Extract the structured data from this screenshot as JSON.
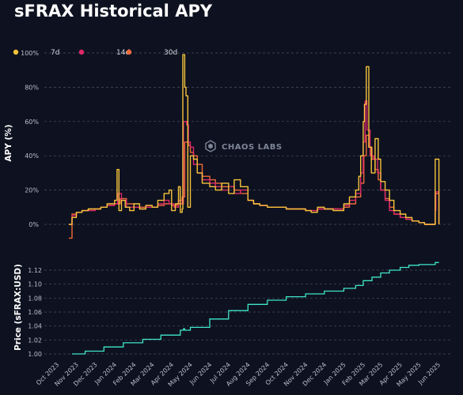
{
  "title": "sFRAX Historical APY",
  "colors": {
    "background": "#0e1220",
    "apy_7d": "#f5c33b",
    "apy_14d": "#e0286a",
    "apy_30d": "#ef6a3a",
    "price": "#3fe6c8"
  },
  "watermark": "CHAOS LABS",
  "watermark_icon": "chaos-labs-logo-icon",
  "chart_data": [
    {
      "type": "line",
      "title": "sFRAX Historical APY",
      "ylabel": "APY (%)",
      "xlabel": "",
      "ylim": [
        0,
        100
      ],
      "y_ticks": [
        "0%",
        "20%",
        "40%",
        "60%",
        "80%",
        "100%"
      ],
      "y_tick_values": [
        0,
        20,
        40,
        60,
        80,
        100
      ],
      "grid": true,
      "legend_position": "top-left",
      "legend": [
        "7d",
        "14d",
        "30d"
      ],
      "series": [
        {
          "name": "7d",
          "color": "#f5c33b",
          "x": [
            "2023-10-20",
            "2023-10-25",
            "2023-11-01",
            "2023-11-10",
            "2023-11-20",
            "2023-12-01",
            "2023-12-10",
            "2023-12-20",
            "2024-01-01",
            "2024-01-05",
            "2024-01-08",
            "2024-01-12",
            "2024-01-18",
            "2024-01-25",
            "2024-02-01",
            "2024-02-10",
            "2024-02-20",
            "2024-03-01",
            "2024-03-10",
            "2024-03-20",
            "2024-03-28",
            "2024-04-01",
            "2024-04-07",
            "2024-04-12",
            "2024-04-15",
            "2024-04-18",
            "2024-04-19",
            "2024-04-22",
            "2024-04-24",
            "2024-04-27",
            "2024-05-01",
            "2024-05-06",
            "2024-05-12",
            "2024-05-20",
            "2024-06-01",
            "2024-06-10",
            "2024-06-20",
            "2024-07-01",
            "2024-07-10",
            "2024-07-20",
            "2024-08-01",
            "2024-08-10",
            "2024-08-20",
            "2024-09-01",
            "2024-09-15",
            "2024-10-01",
            "2024-10-15",
            "2024-11-01",
            "2024-11-10",
            "2024-11-20",
            "2024-12-01",
            "2024-12-15",
            "2025-01-01",
            "2025-01-10",
            "2025-01-20",
            "2025-01-25",
            "2025-01-28",
            "2025-02-01",
            "2025-02-03",
            "2025-02-06",
            "2025-02-10",
            "2025-02-14",
            "2025-02-20",
            "2025-02-25",
            "2025-03-01",
            "2025-03-08",
            "2025-03-15",
            "2025-03-22",
            "2025-04-01",
            "2025-04-10",
            "2025-04-20",
            "2025-05-01",
            "2025-05-10",
            "2025-05-20",
            "2025-05-27",
            "2025-05-28",
            "2025-06-02"
          ],
          "values": [
            0,
            4,
            7,
            8,
            9,
            9,
            10,
            12,
            14,
            32,
            8,
            14,
            10,
            8,
            12,
            9,
            11,
            10,
            14,
            18,
            20,
            8,
            12,
            22,
            7,
            9,
            99,
            80,
            75,
            10,
            40,
            38,
            30,
            24,
            22,
            20,
            24,
            18,
            26,
            22,
            14,
            12,
            11,
            10,
            10,
            9,
            9,
            8,
            7,
            10,
            9,
            8,
            12,
            16,
            20,
            28,
            40,
            60,
            70,
            92,
            45,
            30,
            50,
            38,
            25,
            20,
            14,
            8,
            6,
            4,
            2,
            1,
            0,
            0,
            38,
            38,
            0
          ]
        },
        {
          "name": "14d",
          "color": "#e0286a",
          "x": [
            "2023-10-20",
            "2023-10-25",
            "2023-11-01",
            "2023-11-10",
            "2023-11-20",
            "2023-12-01",
            "2023-12-10",
            "2023-12-20",
            "2024-01-01",
            "2024-01-06",
            "2024-01-12",
            "2024-01-20",
            "2024-02-01",
            "2024-02-10",
            "2024-02-20",
            "2024-03-01",
            "2024-03-10",
            "2024-03-20",
            "2024-03-28",
            "2024-04-05",
            "2024-04-12",
            "2024-04-18",
            "2024-04-20",
            "2024-04-25",
            "2024-04-28",
            "2024-05-01",
            "2024-05-06",
            "2024-05-12",
            "2024-05-20",
            "2024-06-01",
            "2024-06-10",
            "2024-06-20",
            "2024-07-01",
            "2024-07-10",
            "2024-07-20",
            "2024-08-01",
            "2024-08-10",
            "2024-08-20",
            "2024-09-01",
            "2024-09-15",
            "2024-10-01",
            "2024-10-15",
            "2024-11-01",
            "2024-11-10",
            "2024-11-20",
            "2024-12-01",
            "2024-12-15",
            "2025-01-01",
            "2025-01-10",
            "2025-01-20",
            "2025-01-28",
            "2025-02-01",
            "2025-02-04",
            "2025-02-07",
            "2025-02-12",
            "2025-02-18",
            "2025-02-24",
            "2025-03-01",
            "2025-03-08",
            "2025-03-15",
            "2025-03-22",
            "2025-04-01",
            "2025-04-10",
            "2025-04-20",
            "2025-05-01",
            "2025-05-10",
            "2025-05-20",
            "2025-05-27",
            "2025-05-28",
            "2025-06-02"
          ],
          "values": [
            0,
            5,
            7,
            8,
            8,
            9,
            10,
            11,
            12,
            18,
            14,
            10,
            10,
            9,
            10,
            10,
            12,
            14,
            12,
            10,
            14,
            12,
            60,
            58,
            48,
            45,
            35,
            30,
            26,
            24,
            22,
            20,
            22,
            18,
            20,
            14,
            12,
            11,
            10,
            10,
            9,
            9,
            8,
            8,
            9,
            9,
            9,
            11,
            14,
            18,
            30,
            48,
            72,
            55,
            40,
            38,
            30,
            20,
            14,
            8,
            6,
            4,
            3,
            2,
            1,
            0,
            0,
            8,
            19,
            0
          ]
        },
        {
          "name": "30d",
          "color": "#ef6a3a",
          "x": [
            "2023-10-20",
            "2023-10-25",
            "2023-11-01",
            "2023-11-10",
            "2023-11-20",
            "2023-12-01",
            "2023-12-10",
            "2023-12-20",
            "2024-01-01",
            "2024-01-10",
            "2024-01-20",
            "2024-02-01",
            "2024-02-10",
            "2024-02-20",
            "2024-03-01",
            "2024-03-10",
            "2024-03-20",
            "2024-04-01",
            "2024-04-10",
            "2024-04-18",
            "2024-04-22",
            "2024-04-28",
            "2024-05-01",
            "2024-05-06",
            "2024-05-12",
            "2024-05-20",
            "2024-06-01",
            "2024-06-10",
            "2024-06-20",
            "2024-07-01",
            "2024-07-10",
            "2024-07-20",
            "2024-08-01",
            "2024-08-10",
            "2024-08-20",
            "2024-09-01",
            "2024-09-15",
            "2024-10-01",
            "2024-10-15",
            "2024-11-01",
            "2024-11-10",
            "2024-11-20",
            "2024-12-01",
            "2024-12-15",
            "2025-01-01",
            "2025-01-10",
            "2025-01-20",
            "2025-01-28",
            "2025-02-02",
            "2025-02-06",
            "2025-02-10",
            "2025-02-15",
            "2025-02-20",
            "2025-02-25",
            "2025-03-01",
            "2025-03-08",
            "2025-03-15",
            "2025-03-22",
            "2025-04-01",
            "2025-04-10",
            "2025-04-20",
            "2025-05-01",
            "2025-05-10",
            "2025-05-20",
            "2025-05-27",
            "2025-06-02"
          ],
          "values": [
            -8,
            6,
            7,
            8,
            9,
            9,
            10,
            11,
            12,
            15,
            12,
            10,
            10,
            11,
            10,
            11,
            12,
            11,
            12,
            16,
            48,
            46,
            42,
            40,
            35,
            28,
            26,
            24,
            22,
            22,
            20,
            18,
            14,
            12,
            11,
            10,
            10,
            9,
            9,
            8,
            8,
            9,
            9,
            9,
            10,
            12,
            16,
            24,
            40,
            52,
            45,
            38,
            32,
            26,
            20,
            15,
            10,
            6,
            4,
            3,
            2,
            1,
            0,
            0,
            18,
            0
          ]
        }
      ]
    },
    {
      "type": "line",
      "ylabel": "Price (sFRAX:USD)",
      "xlabel": "",
      "ylim": [
        0.995,
        1.135
      ],
      "y_ticks": [
        "1.00",
        "1.02",
        "1.04",
        "1.06",
        "1.08",
        "1.10",
        "1.12"
      ],
      "y_tick_values": [
        1.0,
        1.02,
        1.04,
        1.06,
        1.08,
        1.1,
        1.12
      ],
      "grid": true,
      "x_ticks": [
        "Oct 2023",
        "Nov 2023",
        "Dec 2023",
        "Jan 2024",
        "Feb 2024",
        "Mar 2024",
        "Apr 2024",
        "May 2024",
        "Jun 2024",
        "Jul 2024",
        "Aug 2024",
        "Sep 2024",
        "Oct 2024",
        "Nov 2024",
        "Dec 2024",
        "Jan 2025",
        "Feb 2025",
        "Mar 2025",
        "Apr 2025",
        "May 2025",
        "Jun 2025"
      ],
      "x_tick_dates": [
        "2023-10-01",
        "2023-11-01",
        "2023-12-01",
        "2024-01-01",
        "2024-02-01",
        "2024-03-01",
        "2024-04-01",
        "2024-05-01",
        "2024-06-01",
        "2024-07-01",
        "2024-08-01",
        "2024-09-01",
        "2024-10-01",
        "2024-11-01",
        "2024-12-01",
        "2025-01-01",
        "2025-02-01",
        "2025-03-01",
        "2025-04-01",
        "2025-05-01",
        "2025-06-01"
      ],
      "series": [
        {
          "name": "Price",
          "color": "#3fe6c8",
          "x": [
            "2023-10-25",
            "2023-11-15",
            "2023-12-15",
            "2024-01-15",
            "2024-02-15",
            "2024-03-15",
            "2024-04-15",
            "2024-04-20",
            "2024-04-22",
            "2024-05-01",
            "2024-06-01",
            "2024-07-01",
            "2024-08-01",
            "2024-09-01",
            "2024-10-01",
            "2024-11-01",
            "2024-12-01",
            "2025-01-01",
            "2025-01-20",
            "2025-02-01",
            "2025-02-15",
            "2025-03-01",
            "2025-03-15",
            "2025-04-01",
            "2025-04-15",
            "2025-05-01",
            "2025-05-20",
            "2025-05-27",
            "2025-06-02"
          ],
          "values": [
            1.0,
            1.004,
            1.01,
            1.016,
            1.021,
            1.027,
            1.034,
            1.036,
            1.034,
            1.038,
            1.05,
            1.062,
            1.071,
            1.077,
            1.082,
            1.086,
            1.09,
            1.094,
            1.098,
            1.105,
            1.11,
            1.116,
            1.12,
            1.124,
            1.127,
            1.128,
            1.128,
            1.131,
            1.131
          ]
        }
      ]
    }
  ]
}
